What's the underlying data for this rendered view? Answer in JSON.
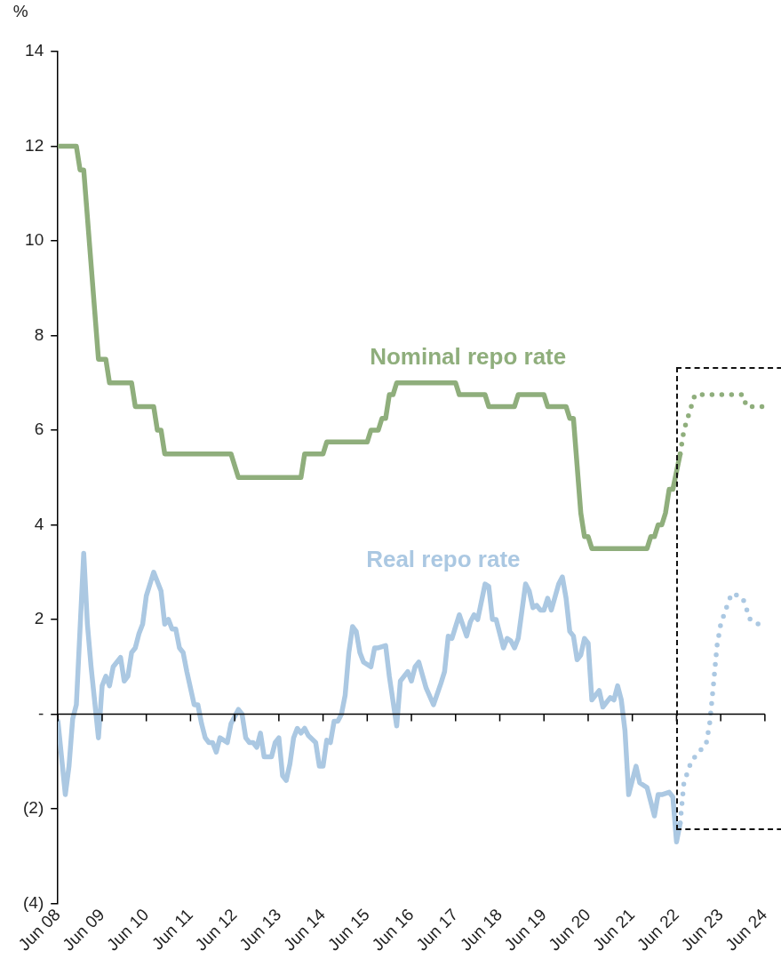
{
  "chart_data": {
    "type": "line",
    "ylabel": "%",
    "marker": "none",
    "xlim": [
      "2008-06",
      "2024-06"
    ],
    "xticks": [
      {
        "value": "2008-06",
        "label": "Jun 08"
      },
      {
        "value": "2009-06",
        "label": "Jun 09"
      },
      {
        "value": "2010-06",
        "label": "Jun 10"
      },
      {
        "value": "2011-06",
        "label": "Jun 11"
      },
      {
        "value": "2012-06",
        "label": "Jun 12"
      },
      {
        "value": "2013-06",
        "label": "Jun 13"
      },
      {
        "value": "2014-06",
        "label": "Jun 14"
      },
      {
        "value": "2015-06",
        "label": "Jun 15"
      },
      {
        "value": "2016-06",
        "label": "Jun 16"
      },
      {
        "value": "2017-06",
        "label": "Jun 17"
      },
      {
        "value": "2018-06",
        "label": "Jun 18"
      },
      {
        "value": "2019-06",
        "label": "Jun 19"
      },
      {
        "value": "2020-06",
        "label": "Jun 20"
      },
      {
        "value": "2021-06",
        "label": "Jun 21"
      },
      {
        "value": "2022-06",
        "label": "Jun 22"
      },
      {
        "value": "2023-06",
        "label": "Jun 23"
      },
      {
        "value": "2024-06",
        "label": "Jun 24"
      }
    ],
    "ylim": [
      -4,
      14
    ],
    "yticks": [
      {
        "value": -4,
        "label": "(4)"
      },
      {
        "value": -2,
        "label": "(2)"
      },
      {
        "value": 0,
        "label": "-"
      },
      2,
      4,
      6,
      8,
      10,
      12,
      14
    ],
    "series": [
      {
        "name": "Nominal repo rate",
        "color": "#8fae7c",
        "line_style": "solid",
        "x": [
          "2008-06",
          "2008-11",
          "2008-12",
          "2009-01",
          "2009-02",
          "2009-03",
          "2009-04",
          "2009-05",
          "2009-07",
          "2009-08",
          "2010-02",
          "2010-03",
          "2010-08",
          "2010-09",
          "2010-10",
          "2010-11",
          "2012-05",
          "2012-07",
          "2013-12",
          "2014-01",
          "2014-06",
          "2014-07",
          "2015-06",
          "2015-07",
          "2015-09",
          "2015-10",
          "2015-11",
          "2015-12",
          "2016-01",
          "2016-02",
          "2017-06",
          "2017-07",
          "2018-02",
          "2018-03",
          "2018-10",
          "2018-11",
          "2019-06",
          "2019-07",
          "2019-12",
          "2020-01",
          "2020-02",
          "2020-03",
          "2020-04",
          "2020-05",
          "2020-06",
          "2020-07",
          "2021-10",
          "2021-11",
          "2021-12",
          "2022-01",
          "2022-02",
          "2022-03",
          "2022-04",
          "2022-05",
          "2022-07"
        ],
        "values": [
          12,
          12,
          11.5,
          11.5,
          10.5,
          9.5,
          8.5,
          7.5,
          7.5,
          7,
          7,
          6.5,
          6.5,
          6,
          6,
          5.5,
          5.5,
          5,
          5,
          5.5,
          5.5,
          5.75,
          5.75,
          6,
          6,
          6.25,
          6.25,
          6.75,
          6.75,
          7,
          7,
          6.75,
          6.75,
          6.5,
          6.5,
          6.75,
          6.75,
          6.5,
          6.5,
          6.25,
          6.25,
          5.25,
          4.25,
          3.75,
          3.75,
          3.5,
          3.5,
          3.75,
          3.75,
          4,
          4,
          4.25,
          4.75,
          4.75,
          5.5
        ]
      },
      {
        "color": "#8fae7c",
        "line_style": "dotted",
        "x": [
          "2022-07",
          "2022-08",
          "2022-09",
          "2022-10",
          "2022-11",
          "2023-12",
          "2024-01",
          "2024-06"
        ],
        "values": [
          5.5,
          6,
          6.25,
          6.5,
          6.75,
          6.75,
          6.5,
          6.5
        ]
      },
      {
        "name": "Real repo rate",
        "color": "#abc8e2",
        "line_style": "solid",
        "x": [
          "2008-06",
          "2008-08",
          "2008-09",
          "2008-10",
          "2008-11",
          "2009-01",
          "2009-02",
          "2009-03",
          "2009-05",
          "2009-06",
          "2009-07",
          "2009-08",
          "2009-09",
          "2009-11",
          "2009-12",
          "2010-01",
          "2010-02",
          "2010-03",
          "2010-04",
          "2010-05",
          "2010-06",
          "2010-08",
          "2010-10",
          "2010-11",
          "2010-12",
          "2011-01",
          "2011-02",
          "2011-03",
          "2011-04",
          "2011-05",
          "2011-07",
          "2011-08",
          "2011-09",
          "2011-10",
          "2011-11",
          "2011-12",
          "2012-01",
          "2012-02",
          "2012-04",
          "2012-05",
          "2012-07",
          "2012-08",
          "2012-09",
          "2012-10",
          "2012-11",
          "2012-12",
          "2013-01",
          "2013-02",
          "2013-04",
          "2013-05",
          "2013-06",
          "2013-07",
          "2013-08",
          "2013-09",
          "2013-10",
          "2013-11",
          "2013-12",
          "2014-01",
          "2014-02",
          "2014-04",
          "2014-05",
          "2014-06",
          "2014-07",
          "2014-08",
          "2014-09",
          "2014-10",
          "2014-11",
          "2014-12",
          "2015-01",
          "2015-02",
          "2015-03",
          "2015-04",
          "2015-05",
          "2015-07",
          "2015-08",
          "2015-09",
          "2015-11",
          "2015-12",
          "2016-02",
          "2016-03",
          "2016-05",
          "2016-06",
          "2016-07",
          "2016-08",
          "2016-10",
          "2016-12",
          "2017-02",
          "2017-03",
          "2017-04",
          "2017-05",
          "2017-07",
          "2017-09",
          "2017-10",
          "2017-11",
          "2017-12",
          "2018-02",
          "2018-03",
          "2018-04",
          "2018-05",
          "2018-07",
          "2018-08",
          "2018-09",
          "2018-10",
          "2018-11",
          "2019-01",
          "2019-02",
          "2019-03",
          "2019-04",
          "2019-05",
          "2019-06",
          "2019-07",
          "2019-08",
          "2019-10",
          "2019-11",
          "2019-12",
          "2020-01",
          "2020-02",
          "2020-03",
          "2020-04",
          "2020-05",
          "2020-06",
          "2020-07",
          "2020-09",
          "2020-10",
          "2020-12",
          "2021-01",
          "2021-02",
          "2021-03",
          "2021-04",
          "2021-05",
          "2021-07",
          "2021-08",
          "2021-10",
          "2021-12",
          "2022-01",
          "2022-02",
          "2022-04",
          "2022-05",
          "2022-06",
          "2022-07"
        ],
        "values": [
          -0.15,
          -1.7,
          -1.1,
          -0.1,
          0.2,
          3.4,
          1.9,
          1,
          -0.5,
          0.6,
          0.8,
          0.6,
          1,
          1.2,
          0.7,
          0.8,
          1.3,
          1.4,
          1.7,
          1.9,
          2.5,
          3,
          2.6,
          1.9,
          2,
          1.8,
          1.8,
          1.4,
          1.3,
          0.9,
          0.2,
          0.2,
          -0.2,
          -0.5,
          -0.6,
          -0.6,
          -0.8,
          -0.5,
          -0.6,
          -0.2,
          0.1,
          0,
          -0.5,
          -0.6,
          -0.6,
          -0.7,
          -0.4,
          -0.9,
          -0.9,
          -0.6,
          -0.5,
          -1.3,
          -1.4,
          -1.05,
          -0.5,
          -0.3,
          -0.4,
          -0.3,
          -0.45,
          -0.6,
          -1.1,
          -1.1,
          -0.55,
          -0.6,
          -0.15,
          -0.15,
          0,
          0.4,
          1.3,
          1.85,
          1.75,
          1.3,
          1.1,
          1,
          1.4,
          1.4,
          1.45,
          0.8,
          -0.25,
          0.7,
          0.9,
          0.7,
          1,
          1.1,
          0.55,
          0.2,
          0.65,
          0.9,
          1.65,
          1.6,
          2.1,
          1.65,
          1.95,
          2.1,
          2,
          2.75,
          2.7,
          2,
          2,
          1.4,
          1.6,
          1.55,
          1.4,
          1.6,
          2.75,
          2.6,
          2.25,
          2.3,
          2.2,
          2.2,
          2.45,
          2.2,
          2.75,
          2.9,
          2.45,
          1.75,
          1.65,
          1.15,
          1.25,
          1.6,
          1.5,
          0.3,
          0.5,
          0.15,
          0.35,
          0.3,
          0.6,
          0.3,
          -0.35,
          -1.7,
          -1.1,
          -1.45,
          -1.55,
          -2.15,
          -1.7,
          -1.7,
          -1.65,
          -1.75,
          -2.7,
          -2.3
        ]
      },
      {
        "color": "#abc8e2",
        "line_style": "dotted",
        "x": [
          "2022-07",
          "2022-08",
          "2022-10",
          "2022-12",
          "2023-02",
          "2023-03",
          "2023-04",
          "2023-05",
          "2023-06",
          "2023-08",
          "2023-09",
          "2023-11",
          "2023-12",
          "2024-02",
          "2024-04",
          "2024-06"
        ],
        "values": [
          -2.3,
          -1.45,
          -1,
          -0.8,
          -0.65,
          -0.2,
          0.6,
          1.45,
          1.9,
          2.35,
          2.55,
          2.5,
          2.45,
          2,
          1.9,
          2
        ]
      }
    ]
  }
}
